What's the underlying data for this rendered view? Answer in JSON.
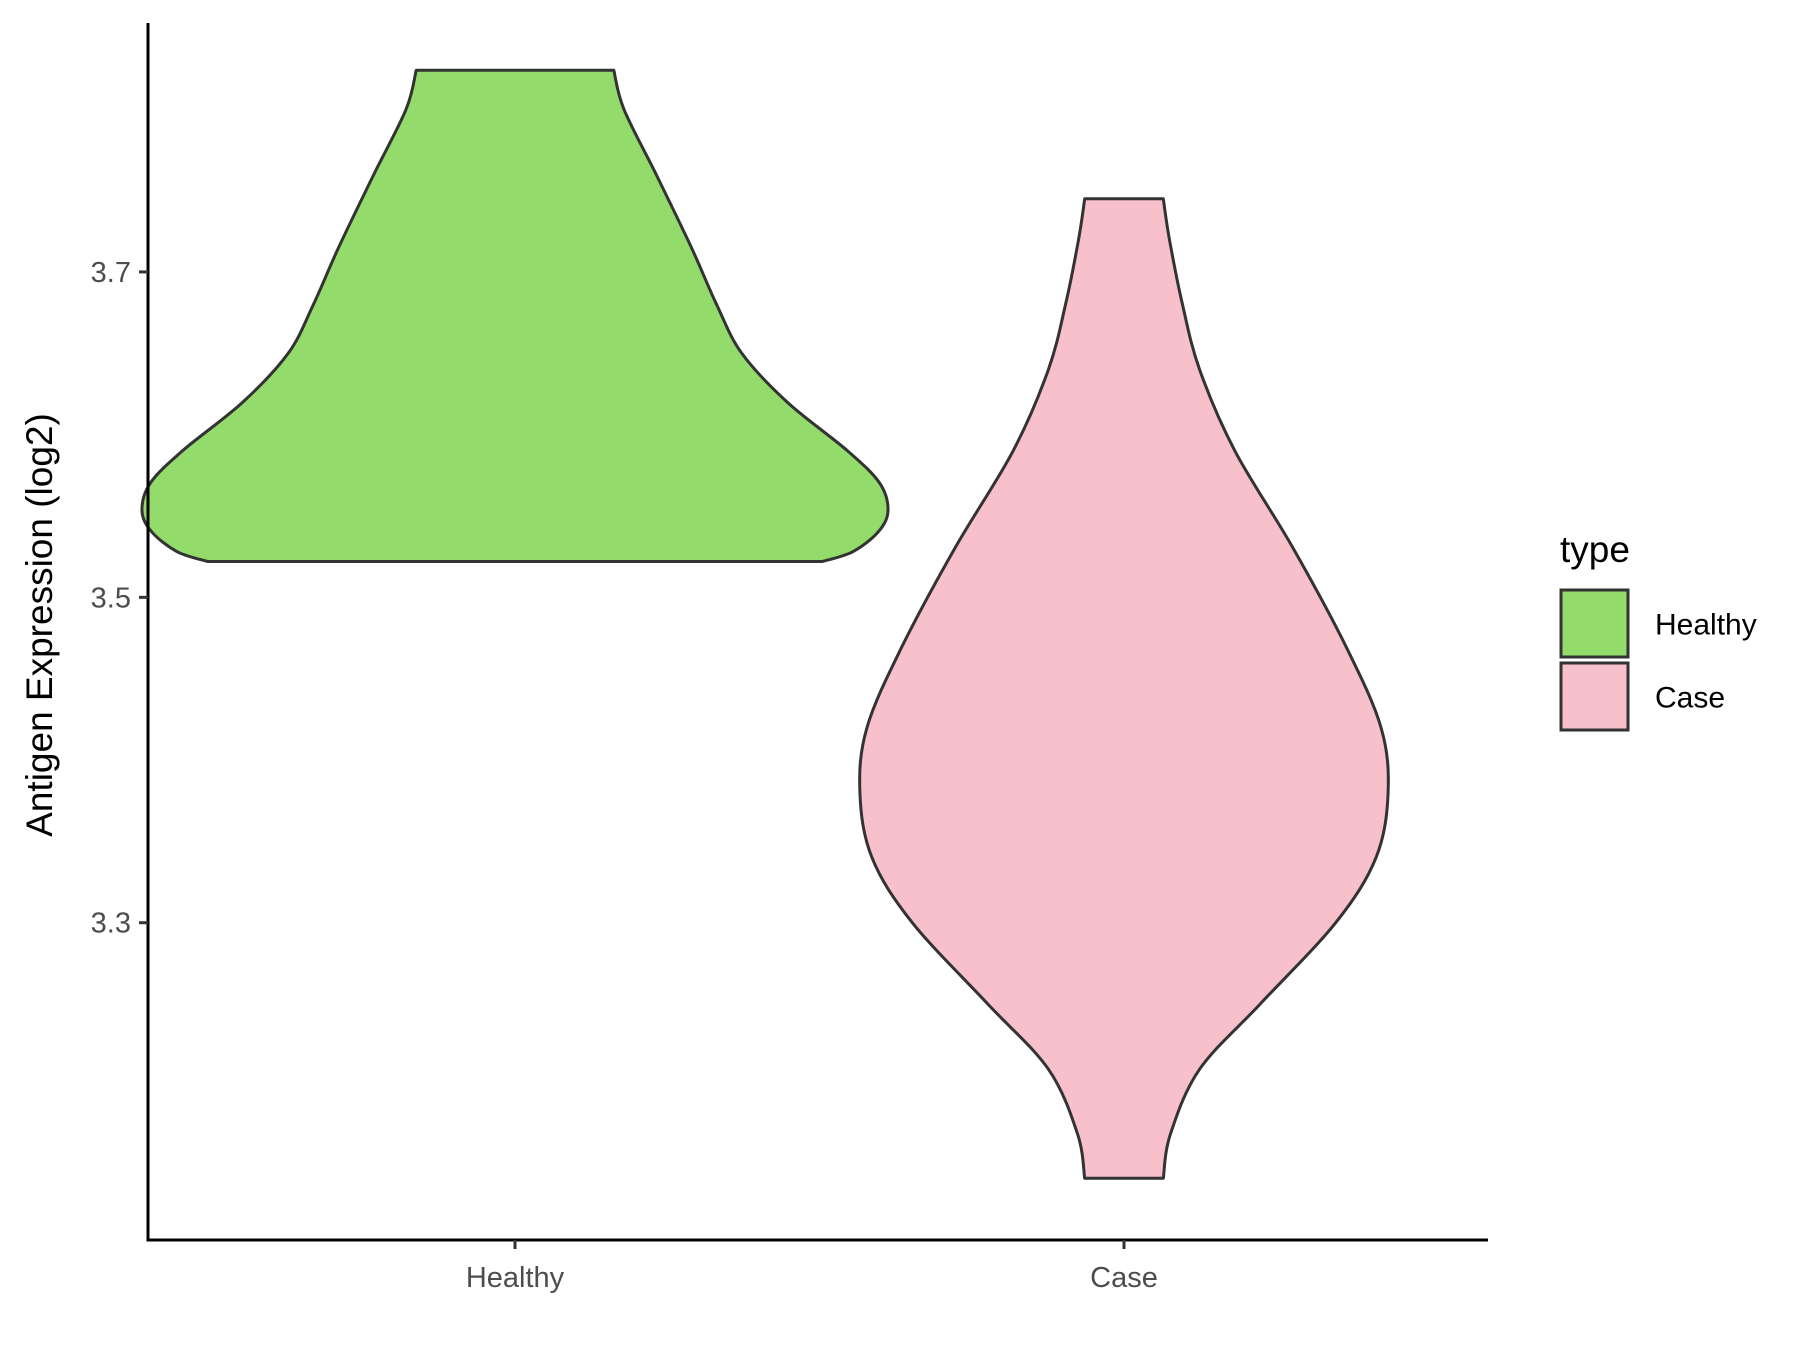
{
  "chart_data": {
    "type": "violin",
    "title": "",
    "xlabel": "",
    "ylabel": "Antigen Expression (log2)",
    "categories": [
      "Healthy",
      "Case"
    ],
    "y_ticks": [
      3.3,
      3.5,
      3.7
    ],
    "y_tick_labels": [
      "3.3",
      "3.5",
      "3.7"
    ],
    "ylim": [
      3.105,
      3.853
    ],
    "grid": false,
    "legend": {
      "title": "type",
      "position": "right",
      "entries": [
        {
          "label": "Healthy",
          "color": "#93DC6B"
        },
        {
          "label": "Case",
          "color": "#F7C0CB"
        }
      ]
    },
    "series": [
      {
        "category": "Healthy",
        "color": "#93DC6B",
        "y_min": 3.522,
        "y_max": 3.824,
        "density_profile": [
          {
            "y": 3.522,
            "half_width": 0.305
          },
          {
            "y": 3.528,
            "half_width": 0.335
          },
          {
            "y": 3.54,
            "half_width": 0.36
          },
          {
            "y": 3.553,
            "half_width": 0.37
          },
          {
            "y": 3.57,
            "half_width": 0.362
          },
          {
            "y": 3.59,
            "half_width": 0.33
          },
          {
            "y": 3.62,
            "half_width": 0.27
          },
          {
            "y": 3.65,
            "half_width": 0.225
          },
          {
            "y": 3.68,
            "half_width": 0.2
          },
          {
            "y": 3.715,
            "half_width": 0.175
          },
          {
            "y": 3.76,
            "half_width": 0.14
          },
          {
            "y": 3.8,
            "half_width": 0.108
          },
          {
            "y": 3.824,
            "half_width": 0.098
          }
        ]
      },
      {
        "category": "Case",
        "color": "#F7C0CB",
        "y_min": 3.143,
        "y_max": 3.745,
        "density_profile": [
          {
            "y": 3.143,
            "half_width": 0.039
          },
          {
            "y": 3.17,
            "half_width": 0.046
          },
          {
            "y": 3.21,
            "half_width": 0.075
          },
          {
            "y": 3.25,
            "half_width": 0.135
          },
          {
            "y": 3.3,
            "half_width": 0.21
          },
          {
            "y": 3.34,
            "half_width": 0.25
          },
          {
            "y": 3.38,
            "half_width": 0.262
          },
          {
            "y": 3.42,
            "half_width": 0.255
          },
          {
            "y": 3.47,
            "half_width": 0.22
          },
          {
            "y": 3.53,
            "half_width": 0.168
          },
          {
            "y": 3.59,
            "half_width": 0.11
          },
          {
            "y": 3.64,
            "half_width": 0.075
          },
          {
            "y": 3.68,
            "half_width": 0.058
          },
          {
            "y": 3.72,
            "half_width": 0.045
          },
          {
            "y": 3.745,
            "half_width": 0.039
          }
        ]
      }
    ]
  }
}
